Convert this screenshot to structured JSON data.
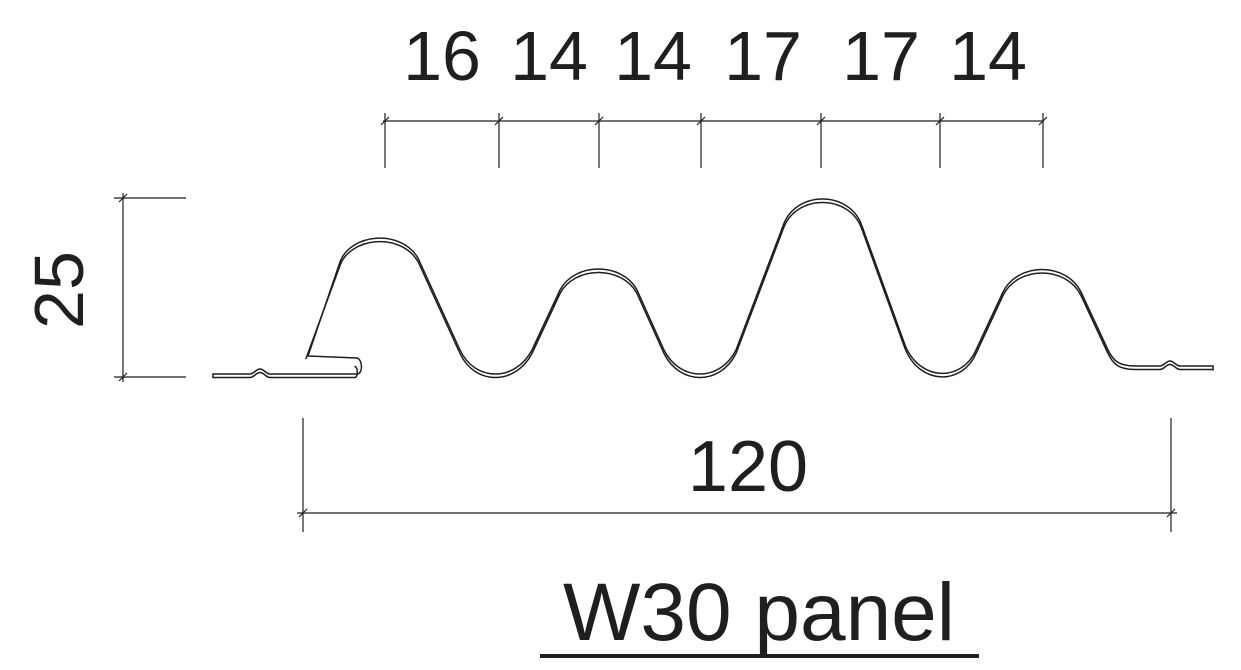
{
  "panel_title": "W30 panel",
  "dimensions": {
    "rib_spacings": [
      "16",
      "14",
      "14",
      "17",
      "17",
      "14"
    ],
    "height": "25",
    "overall_width": "120"
  },
  "colors": {
    "line": "#1f1f1f",
    "background": "#ffffff"
  }
}
